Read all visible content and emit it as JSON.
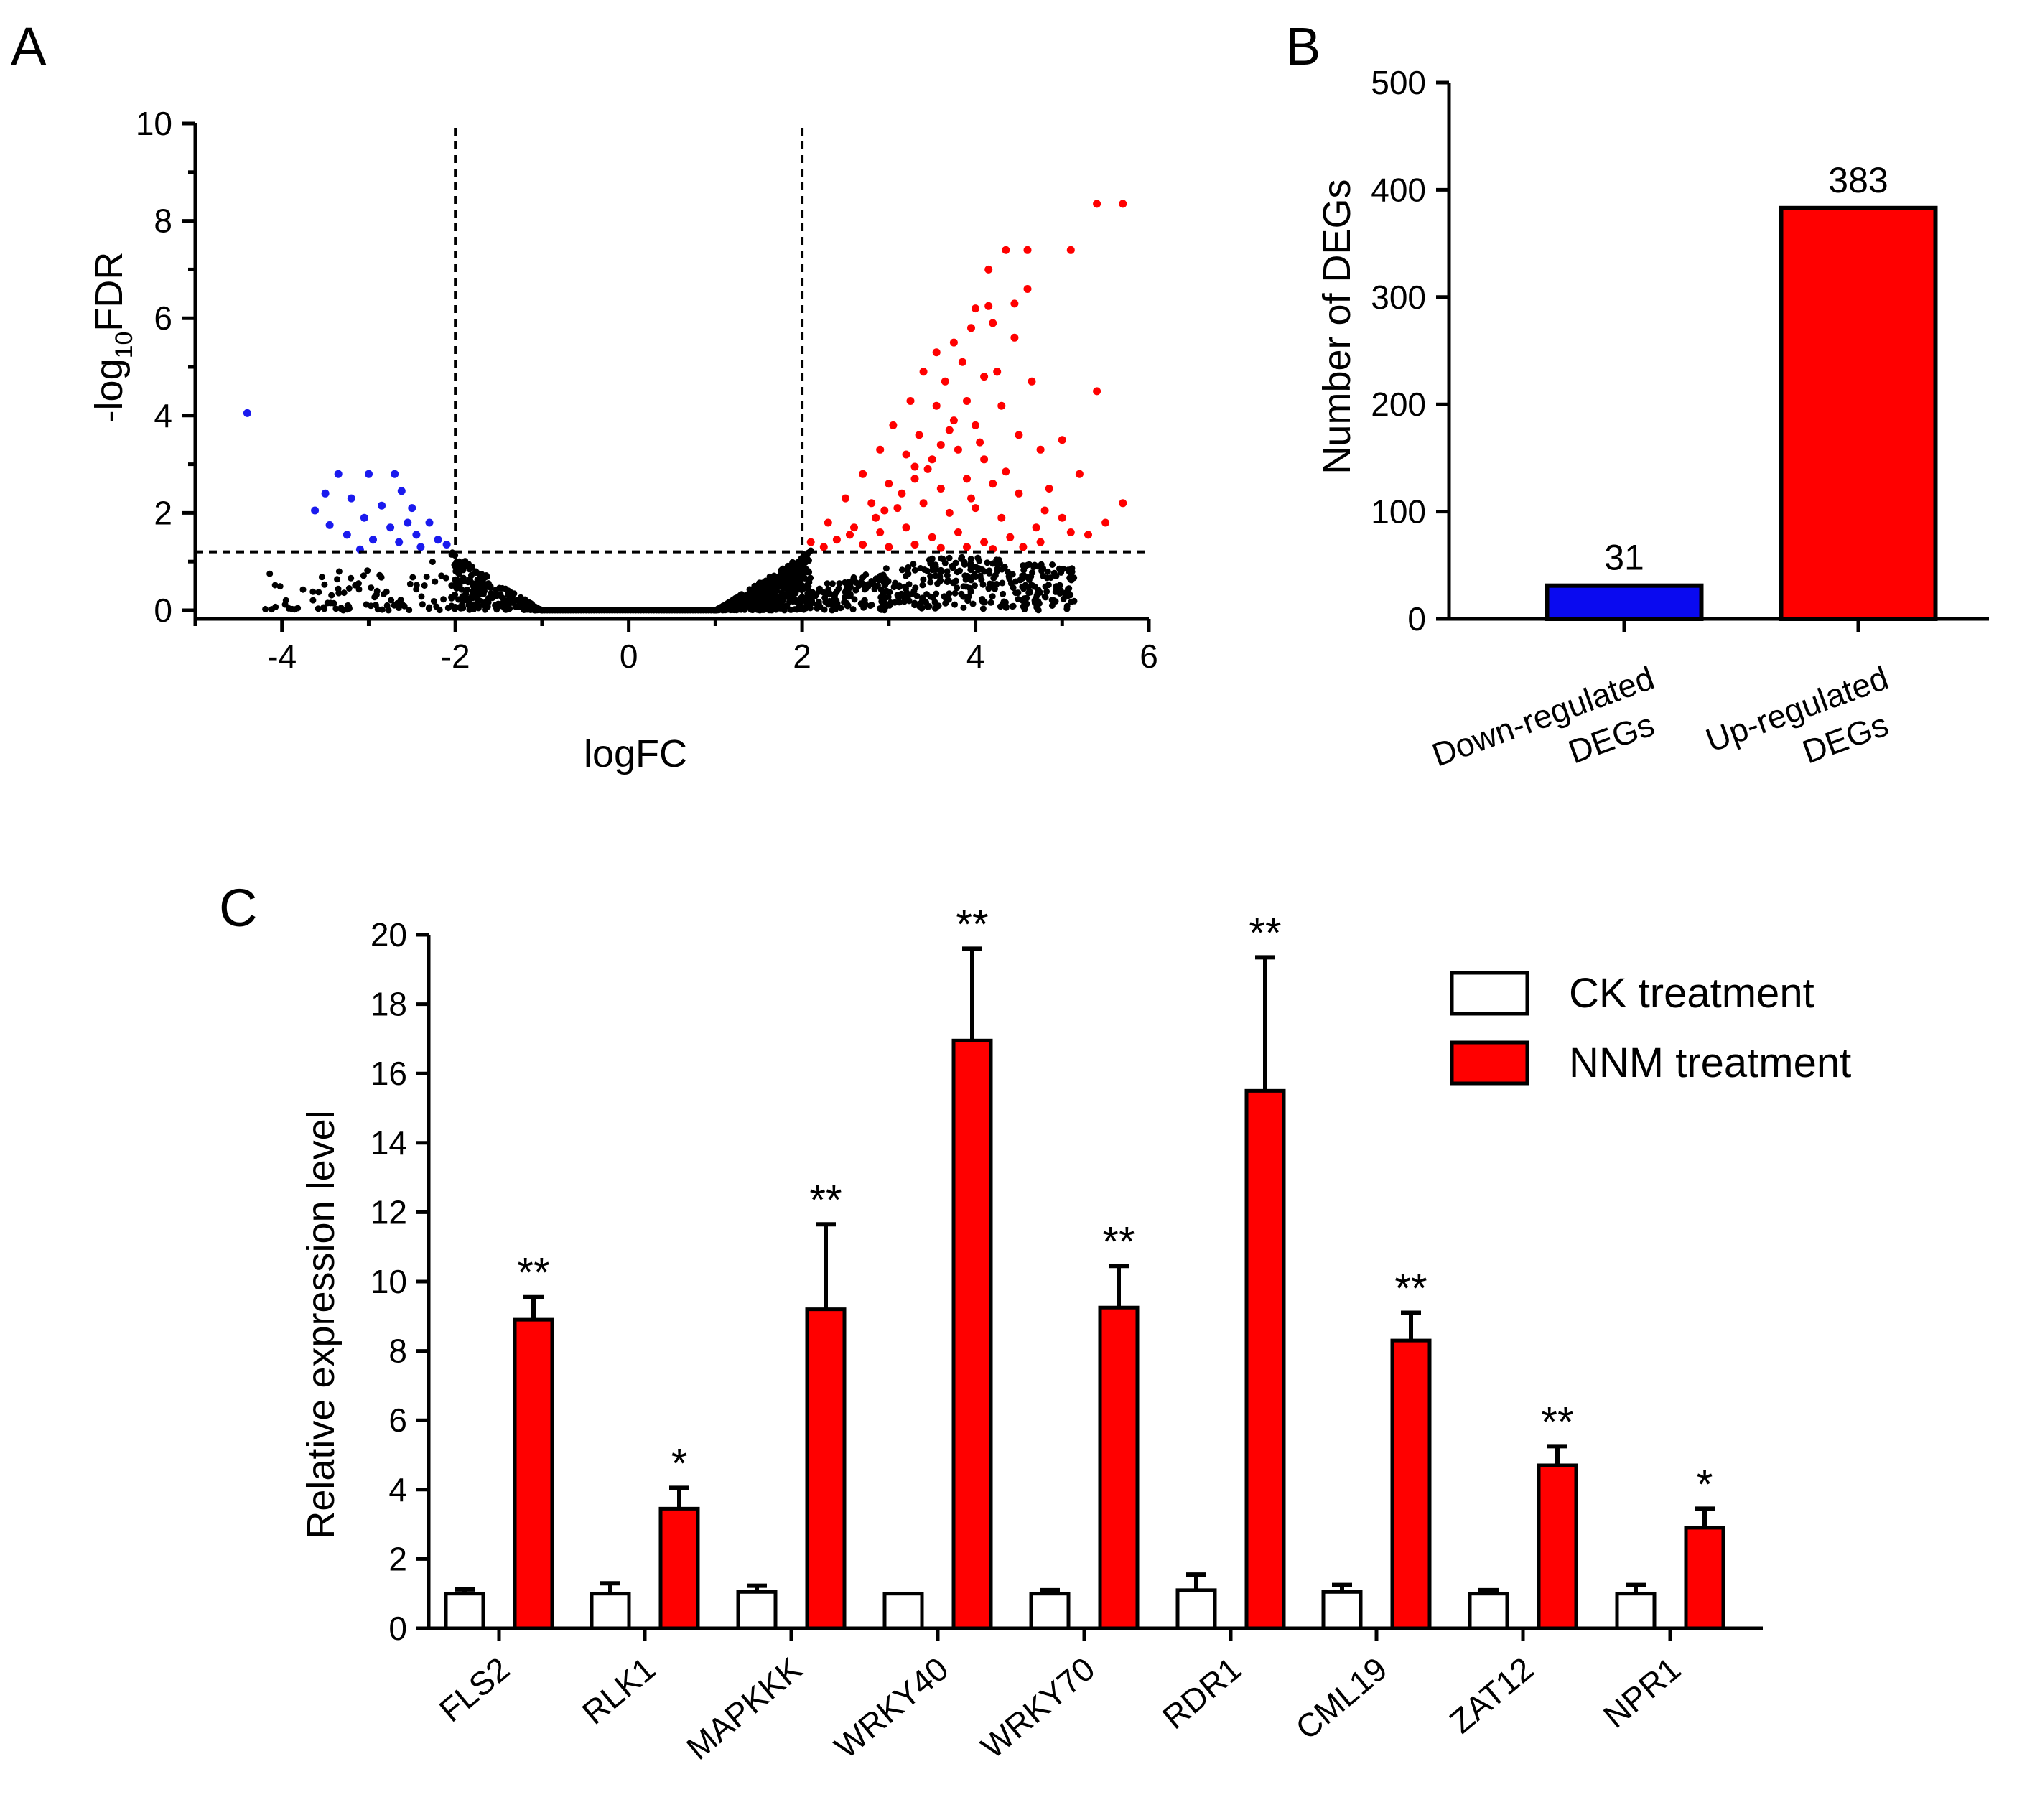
{
  "panels": {
    "a": {
      "letter": "A"
    },
    "b": {
      "letter": "B"
    },
    "c": {
      "letter": "C"
    }
  },
  "chart_data": [
    {
      "id": "A",
      "type": "scatter",
      "title": "",
      "xlabel": "logFC",
      "ylabel_main": "-log",
      "ylabel_sub": "10",
      "ylabel_tail": "FDR",
      "xlim": [
        -5,
        6
      ],
      "ylim": [
        0,
        10
      ],
      "xticks": [
        -4,
        -2,
        0,
        2,
        4,
        6
      ],
      "yticks": [
        0,
        2,
        4,
        6,
        8,
        10
      ],
      "threshold_logfc": [
        -2,
        2
      ],
      "threshold_neglog10fdr": 1.2,
      "colors": {
        "down": "#1a1aee",
        "up": "#ff0000",
        "ns": "#000000"
      },
      "series": [
        {
          "name": "down-regulated",
          "color": "#1a1aee",
          "points": [
            [
              -4.4,
              4.05
            ],
            [
              -3.35,
              2.8
            ],
            [
              -3.0,
              2.8
            ],
            [
              -2.7,
              2.8
            ],
            [
              -2.62,
              2.45
            ],
            [
              -2.5,
              2.1
            ],
            [
              -3.5,
              2.4
            ],
            [
              -3.62,
              2.05
            ],
            [
              -3.2,
              2.3
            ],
            [
              -3.05,
              1.9
            ],
            [
              -2.85,
              2.15
            ],
            [
              -2.75,
              1.7
            ],
            [
              -2.55,
              1.8
            ],
            [
              -2.45,
              1.55
            ],
            [
              -2.3,
              1.8
            ],
            [
              -2.2,
              1.45
            ],
            [
              -3.45,
              1.75
            ],
            [
              -3.25,
              1.55
            ],
            [
              -2.95,
              1.45
            ],
            [
              -2.1,
              1.35
            ],
            [
              -2.65,
              1.4
            ],
            [
              -3.1,
              1.25
            ],
            [
              -2.4,
              1.3
            ]
          ]
        },
        {
          "name": "up-regulated",
          "color": "#ff0000",
          "points": [
            [
              5.4,
              8.35
            ],
            [
              5.7,
              8.35
            ],
            [
              4.35,
              7.4
            ],
            [
              4.6,
              7.4
            ],
            [
              5.1,
              7.4
            ],
            [
              4.15,
              7.0
            ],
            [
              4.6,
              6.6
            ],
            [
              4.0,
              6.2
            ],
            [
              4.15,
              6.25
            ],
            [
              4.45,
              6.3
            ],
            [
              3.95,
              5.8
            ],
            [
              3.75,
              5.5
            ],
            [
              4.2,
              5.9
            ],
            [
              3.55,
              5.3
            ],
            [
              3.85,
              5.1
            ],
            [
              3.4,
              4.9
            ],
            [
              3.65,
              4.7
            ],
            [
              4.1,
              4.8
            ],
            [
              4.65,
              4.7
            ],
            [
              5.4,
              4.5
            ],
            [
              3.25,
              4.3
            ],
            [
              3.55,
              4.2
            ],
            [
              3.9,
              4.3
            ],
            [
              4.3,
              4.2
            ],
            [
              3.05,
              3.8
            ],
            [
              3.35,
              3.6
            ],
            [
              3.7,
              3.7
            ],
            [
              4.0,
              3.8
            ],
            [
              4.5,
              3.6
            ],
            [
              2.9,
              3.3
            ],
            [
              3.2,
              3.2
            ],
            [
              3.5,
              3.1
            ],
            [
              3.8,
              3.3
            ],
            [
              4.1,
              3.1
            ],
            [
              4.75,
              3.3
            ],
            [
              5.0,
              3.5
            ],
            [
              2.7,
              2.8
            ],
            [
              3.0,
              2.6
            ],
            [
              3.3,
              2.7
            ],
            [
              3.6,
              2.5
            ],
            [
              3.9,
              2.7
            ],
            [
              4.2,
              2.6
            ],
            [
              4.5,
              2.4
            ],
            [
              4.85,
              2.5
            ],
            [
              5.2,
              2.8
            ],
            [
              2.5,
              2.3
            ],
            [
              2.8,
              2.2
            ],
            [
              3.1,
              2.1
            ],
            [
              3.4,
              2.2
            ],
            [
              3.7,
              2.0
            ],
            [
              4.0,
              2.1
            ],
            [
              4.3,
              1.9
            ],
            [
              4.7,
              1.7
            ],
            [
              5.0,
              1.9
            ],
            [
              5.5,
              1.8
            ],
            [
              5.7,
              2.2
            ],
            [
              2.3,
              1.8
            ],
            [
              2.6,
              1.7
            ],
            [
              2.9,
              1.6
            ],
            [
              3.2,
              1.7
            ],
            [
              3.5,
              1.5
            ],
            [
              3.8,
              1.6
            ],
            [
              4.1,
              1.4
            ],
            [
              4.4,
              1.5
            ],
            [
              4.75,
              1.4
            ],
            [
              5.3,
              1.55
            ],
            [
              2.1,
              1.4
            ],
            [
              2.4,
              1.45
            ],
            [
              2.7,
              1.35
            ],
            [
              3.0,
              1.3
            ],
            [
              3.3,
              1.35
            ],
            [
              3.6,
              1.28
            ],
            [
              3.9,
              1.3
            ],
            [
              4.2,
              1.26
            ],
            [
              4.55,
              1.3
            ],
            [
              2.25,
              1.3
            ],
            [
              2.55,
              1.55
            ],
            [
              2.85,
              1.9
            ],
            [
              3.15,
              2.4
            ],
            [
              3.45,
              2.9
            ],
            [
              3.75,
              3.9
            ],
            [
              4.25,
              4.9
            ],
            [
              4.45,
              5.6
            ],
            [
              3.95,
              2.3
            ],
            [
              3.6,
              3.4
            ],
            [
              2.95,
              2.05
            ],
            [
              3.3,
              2.95
            ],
            [
              4.05,
              3.45
            ],
            [
              4.35,
              2.85
            ],
            [
              4.8,
              2.05
            ],
            [
              5.1,
              1.6
            ]
          ]
        }
      ]
    },
    {
      "id": "B",
      "type": "bar",
      "title": "",
      "xlabel": "",
      "ylabel": "Number of DEGs",
      "ylim": [
        0,
        500
      ],
      "yticks": [
        0,
        100,
        200,
        300,
        400,
        500
      ],
      "categories": [
        {
          "line1": "Down-regulated",
          "line2": "DEGs"
        },
        {
          "line1": "Up-regulated",
          "line2": "DEGs"
        }
      ],
      "values": [
        31,
        383
      ],
      "value_labels": [
        "31",
        "383"
      ],
      "colors": [
        "#0a0af0",
        "#ff0000"
      ]
    },
    {
      "id": "C",
      "type": "bar",
      "title": "",
      "xlabel": "",
      "ylabel": "Relative expression level",
      "ylim": [
        0,
        20
      ],
      "yticks": [
        0,
        2,
        4,
        6,
        8,
        10,
        12,
        14,
        16,
        18,
        20
      ],
      "categories": [
        "FLS2",
        "RLK1",
        "MAPKKK",
        "WRKY40",
        "WRKY70",
        "RDR1",
        "CML19",
        "ZAT12",
        "NPR1"
      ],
      "series": [
        {
          "name": "CK treatment",
          "color": "#ffffff",
          "values": [
            1.0,
            1.0,
            1.05,
            1.0,
            1.0,
            1.1,
            1.05,
            1.0,
            1.0
          ],
          "errors": [
            0.12,
            0.3,
            0.18,
            0.0,
            0.1,
            0.45,
            0.2,
            0.1,
            0.25
          ]
        },
        {
          "name": "NNM treatment",
          "color": "#ff0000",
          "values": [
            8.9,
            3.45,
            9.2,
            16.95,
            9.25,
            15.5,
            8.3,
            4.7,
            2.9
          ],
          "errors": [
            0.65,
            0.6,
            2.45,
            2.65,
            1.2,
            3.85,
            0.8,
            0.55,
            0.55
          ]
        }
      ],
      "significance": [
        "**",
        "*",
        "**",
        "**",
        "**",
        "**",
        "**",
        "**",
        "*"
      ],
      "legend": {
        "ck": "CK treatment",
        "nnm": "NNM treatment",
        "position": "top-right"
      }
    }
  ]
}
